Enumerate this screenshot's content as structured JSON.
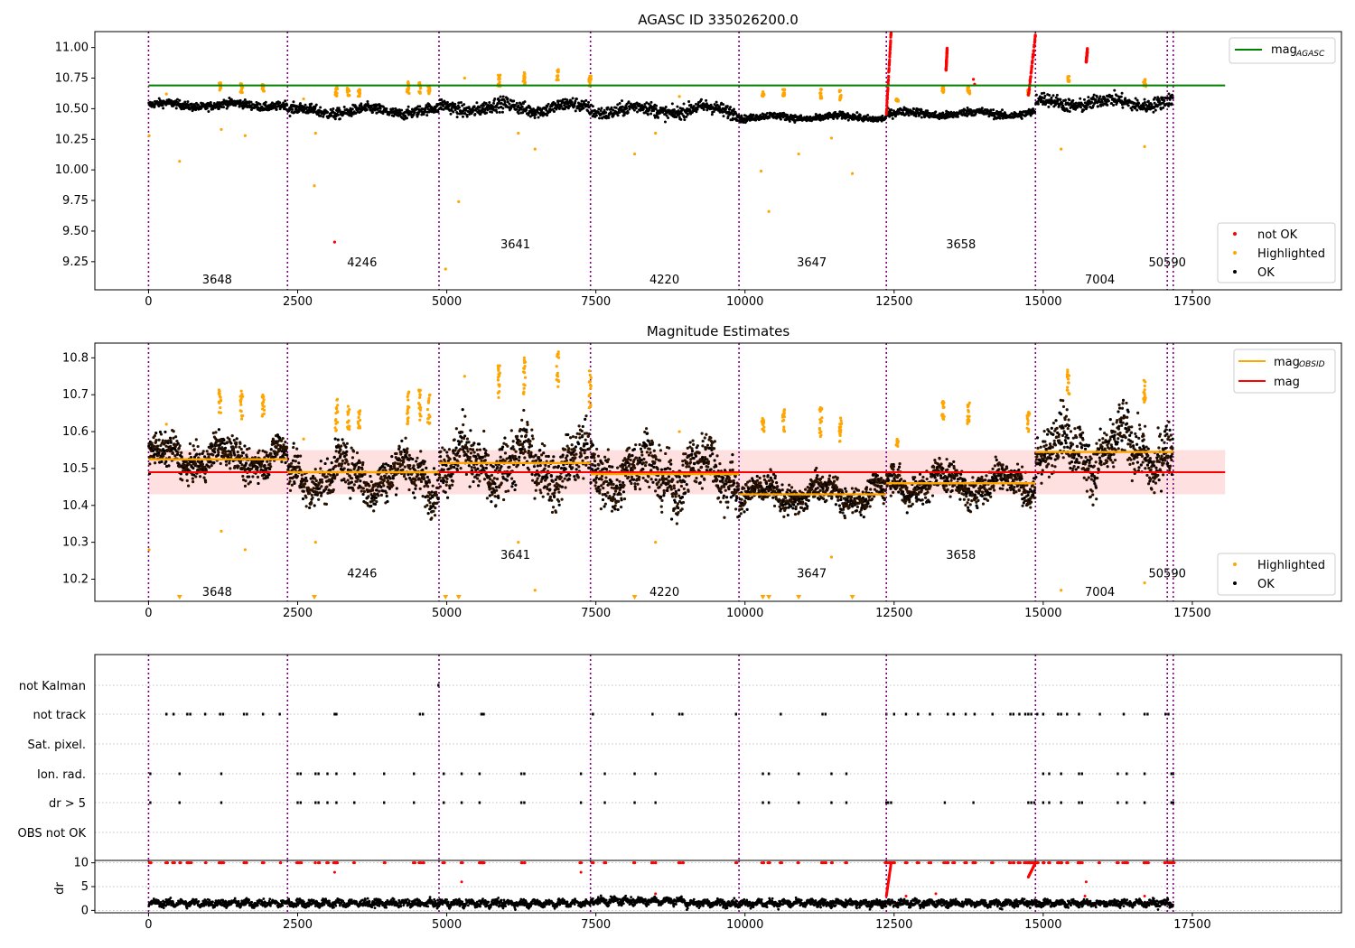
{
  "chart_data": [
    {
      "type": "scatter",
      "title": "AGASC ID 335026200.0",
      "xlim": [
        -900,
        20000
      ],
      "ylim": [
        9.02,
        11.13
      ],
      "xticks": [
        0,
        2500,
        5000,
        7500,
        10000,
        12500,
        15000,
        17500
      ],
      "yticks": [
        9.25,
        9.5,
        9.75,
        10.0,
        10.25,
        10.5,
        10.75,
        11.0
      ],
      "ytick_labels": [
        "9.25",
        "9.50",
        "9.75",
        "10.00",
        "10.25",
        "10.50",
        "10.75",
        "11.00"
      ],
      "obs_boundaries": [
        0,
        2330,
        4870,
        7410,
        9900,
        12370,
        14870,
        17080,
        17180
      ],
      "obs_labels": [
        {
          "x": 1150,
          "y": 9.1,
          "text": "3648"
        },
        {
          "x": 3580,
          "y": 9.24,
          "text": "4246"
        },
        {
          "x": 6150,
          "y": 9.39,
          "text": "3641"
        },
        {
          "x": 8650,
          "y": 9.1,
          "text": "4220"
        },
        {
          "x": 11120,
          "y": 9.24,
          "text": "3647"
        },
        {
          "x": 13620,
          "y": 9.39,
          "text": "3658"
        },
        {
          "x": 15950,
          "y": 9.1,
          "text": "7004"
        },
        {
          "x": 17080,
          "y": 9.24,
          "text": "50590"
        }
      ],
      "mag_agasc": 10.69,
      "mag_agasc_range": [
        0,
        18050
      ],
      "ok_segments": [
        {
          "x0": 0,
          "x1": 2330,
          "mean": 10.53,
          "spread": 0.03
        },
        {
          "x0": 2330,
          "x1": 4870,
          "mean": 10.48,
          "spread": 0.04
        },
        {
          "x0": 4870,
          "x1": 7410,
          "mean": 10.51,
          "spread": 0.05
        },
        {
          "x0": 7410,
          "x1": 9900,
          "mean": 10.49,
          "spread": 0.05
        },
        {
          "x0": 9900,
          "x1": 12370,
          "mean": 10.43,
          "spread": 0.025
        },
        {
          "x0": 12370,
          "x1": 14870,
          "mean": 10.46,
          "spread": 0.03
        },
        {
          "x0": 14870,
          "x1": 17180,
          "mean": 10.55,
          "spread": 0.05
        }
      ],
      "highlight_clusters": [
        {
          "x": 1200,
          "y": [
            10.65,
            10.72
          ]
        },
        {
          "x": 1560,
          "y": [
            10.63,
            10.72
          ]
        },
        {
          "x": 1920,
          "y": [
            10.64,
            10.7
          ]
        },
        {
          "x": 3150,
          "y": [
            10.6,
            10.69
          ]
        },
        {
          "x": 3350,
          "y": [
            10.6,
            10.67
          ]
        },
        {
          "x": 3530,
          "y": [
            10.6,
            10.66
          ]
        },
        {
          "x": 4350,
          "y": [
            10.62,
            10.72
          ]
        },
        {
          "x": 4550,
          "y": [
            10.62,
            10.72
          ]
        },
        {
          "x": 4700,
          "y": [
            10.62,
            10.7
          ]
        },
        {
          "x": 5880,
          "y": [
            10.68,
            10.78
          ]
        },
        {
          "x": 6300,
          "y": [
            10.7,
            10.8
          ]
        },
        {
          "x": 6860,
          "y": [
            10.72,
            10.82
          ]
        },
        {
          "x": 7400,
          "y": [
            10.66,
            10.77
          ]
        },
        {
          "x": 10300,
          "y": [
            10.6,
            10.64
          ]
        },
        {
          "x": 10650,
          "y": [
            10.6,
            10.66
          ]
        },
        {
          "x": 11270,
          "y": [
            10.58,
            10.67
          ]
        },
        {
          "x": 11600,
          "y": [
            10.57,
            10.65
          ]
        },
        {
          "x": 12550,
          "y": [
            10.56,
            10.58
          ]
        },
        {
          "x": 13320,
          "y": [
            10.63,
            10.69
          ]
        },
        {
          "x": 13750,
          "y": [
            10.62,
            10.68
          ]
        },
        {
          "x": 14750,
          "y": [
            10.6,
            10.66
          ]
        },
        {
          "x": 15420,
          "y": [
            10.7,
            10.77
          ]
        },
        {
          "x": 16700,
          "y": [
            10.68,
            10.74
          ]
        }
      ],
      "highlight_scatter": [
        [
          10,
          10.28
        ],
        [
          520,
          10.07
        ],
        [
          1220,
          10.33
        ],
        [
          1620,
          10.28
        ],
        [
          2780,
          9.87
        ],
        [
          2800,
          10.3
        ],
        [
          4980,
          9.19
        ],
        [
          5200,
          9.74
        ],
        [
          6200,
          10.3
        ],
        [
          6480,
          10.17
        ],
        [
          8150,
          10.13
        ],
        [
          8500,
          10.3
        ],
        [
          10270,
          9.99
        ],
        [
          10400,
          9.66
        ],
        [
          10900,
          10.13
        ],
        [
          11450,
          10.26
        ],
        [
          11800,
          9.97
        ],
        [
          15300,
          10.17
        ],
        [
          16700,
          10.19
        ],
        [
          5300,
          10.75
        ],
        [
          300,
          10.62
        ],
        [
          8900,
          10.6
        ],
        [
          2600,
          10.58
        ]
      ],
      "notok_clusters": [
        {
          "x0": 12370,
          "x1": 12450,
          "y": [
            10.45,
            11.13
          ]
        },
        {
          "x0": 14750,
          "x1": 14870,
          "y": [
            10.6,
            11.1
          ]
        },
        {
          "x0": 13370,
          "x1": 13390,
          "y": [
            10.81,
            10.99
          ]
        },
        {
          "x0": 15720,
          "x1": 15740,
          "y": [
            10.88,
            10.98
          ]
        }
      ],
      "notok_scatter": [
        [
          3120,
          9.41
        ],
        [
          13830,
          10.74
        ],
        [
          13850,
          10.7
        ]
      ],
      "legend_upper": [
        {
          "label": "mag",
          "sub": "AGASC",
          "color": "#008000"
        }
      ],
      "legend_lower": [
        {
          "label": "not OK",
          "color": "#ff0000"
        },
        {
          "label": "Highlighted",
          "color": "#ffa500"
        },
        {
          "label": "OK",
          "color": "#000000"
        }
      ]
    },
    {
      "type": "scatter",
      "title": "Magnitude Estimates",
      "xlim": [
        -900,
        20000
      ],
      "ylim": [
        10.14,
        10.84
      ],
      "xticks": [
        0,
        2500,
        5000,
        7500,
        10000,
        12500,
        15000,
        17500
      ],
      "yticks": [
        10.2,
        10.3,
        10.4,
        10.5,
        10.6,
        10.7,
        10.8
      ],
      "ytick_labels": [
        "10.2",
        "10.3",
        "10.4",
        "10.5",
        "10.6",
        "10.7",
        "10.8"
      ],
      "obs_labels": [
        {
          "x": 1150,
          "y": 10.165,
          "text": "3648"
        },
        {
          "x": 3580,
          "y": 10.215,
          "text": "4246"
        },
        {
          "x": 6150,
          "y": 10.265,
          "text": "3641"
        },
        {
          "x": 8650,
          "y": 10.165,
          "text": "4220"
        },
        {
          "x": 11120,
          "y": 10.215,
          "text": "3647"
        },
        {
          "x": 13620,
          "y": 10.265,
          "text": "3658"
        },
        {
          "x": 15950,
          "y": 10.165,
          "text": "7004"
        },
        {
          "x": 17080,
          "y": 10.215,
          "text": "50590"
        }
      ],
      "mag": 10.49,
      "mag_band": [
        10.43,
        10.55
      ],
      "mag_obsid": [
        {
          "x0": 0,
          "x1": 2330,
          "value": 10.525
        },
        {
          "x0": 2330,
          "x1": 4870,
          "value": 10.49
        },
        {
          "x0": 4870,
          "x1": 7410,
          "value": 10.515
        },
        {
          "x0": 7410,
          "x1": 9900,
          "value": 10.485
        },
        {
          "x0": 9900,
          "x1": 12370,
          "value": 10.43
        },
        {
          "x0": 12370,
          "x1": 14870,
          "value": 10.46
        },
        {
          "x0": 14870,
          "x1": 17180,
          "value": 10.545
        }
      ],
      "offscale_markers": [
        520,
        2780,
        4980,
        5200,
        8150,
        10300,
        10400,
        10900,
        11800
      ],
      "legend_upper": [
        {
          "label": "mag",
          "sub": "OBSID",
          "color": "#ffa500"
        },
        {
          "label": "mag",
          "sub": "",
          "color": "#ff0000"
        }
      ],
      "legend_lower": [
        {
          "label": "Highlighted",
          "color": "#ffa500"
        },
        {
          "label": "OK",
          "color": "#000000"
        }
      ]
    },
    {
      "type": "scatter",
      "title": "",
      "xlim": [
        -900,
        20000
      ],
      "flag_labels": [
        "not Kalman",
        "not track",
        "Sat. pixel.",
        "Ion. rad.",
        "dr > 5",
        "OBS not OK"
      ],
      "flag_events": {
        "not Kalman": [
          4860
        ],
        "not track": [
          300,
          420,
          650,
          700,
          950,
          1200,
          1250,
          1600,
          1650,
          1920,
          2200,
          3120,
          3150,
          4550,
          4600,
          5580,
          5600,
          5620,
          7450,
          8450,
          8900,
          8950,
          9850,
          10600,
          11300,
          11350,
          12370,
          12500,
          12700,
          12900,
          13100,
          13400,
          13500,
          13700,
          13850,
          14150,
          14450,
          14500,
          14600,
          14700,
          14750,
          14800,
          14900,
          15000,
          15250,
          15300,
          15400,
          15600,
          15950,
          16350,
          16700,
          16750,
          17050,
          17100
        ],
        "Sat. pixel.": [],
        "Ion. rad.": [
          30,
          520,
          1220,
          2500,
          2550,
          2800,
          2850,
          3000,
          3150,
          3450,
          3950,
          4450,
          4950,
          5250,
          5550,
          6250,
          6300,
          7250,
          7650,
          8150,
          8500,
          10300,
          10400,
          10900,
          11450,
          11700,
          15000,
          15100,
          15300,
          15600,
          15650,
          16250,
          16400,
          16700,
          17150,
          17180
        ],
        "dr > 5": [
          30,
          520,
          1220,
          2500,
          2550,
          2800,
          2850,
          3000,
          3150,
          3450,
          3950,
          4450,
          4950,
          5250,
          5550,
          6250,
          6300,
          7250,
          7650,
          8150,
          8500,
          10300,
          10400,
          10900,
          11450,
          11700,
          12370,
          12400,
          12450,
          13350,
          13830,
          14750,
          14800,
          14850,
          15000,
          15100,
          15300,
          15600,
          15650,
          16250,
          16400,
          16700,
          17150,
          17180
        ],
        "OBS not OK": []
      },
      "dr": {
        "ylabel": "dr",
        "ylim": [
          -0.5,
          10.5
        ],
        "yticks": [
          0,
          5,
          10
        ],
        "threshold": 10
      }
    }
  ]
}
